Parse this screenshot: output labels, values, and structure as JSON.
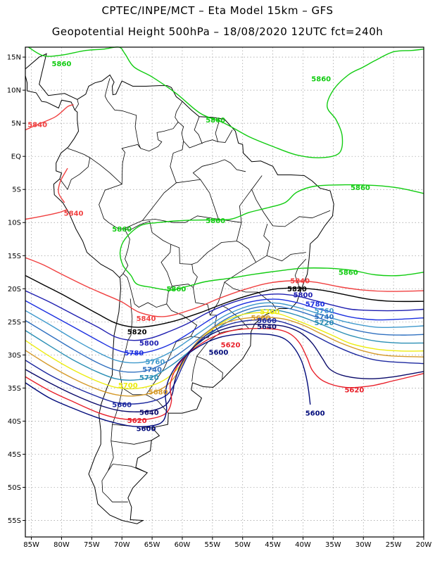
{
  "header": {
    "line1": "CPTEC/INPE/MCT –  Eta Model 15km – GFS",
    "line2": "Geopotential Height 500hPa – 18/08/2020 12UTC fct=240h"
  },
  "axes": {
    "lat_labels": [
      "15N",
      "10N",
      "5N",
      "EQ",
      "5S",
      "10S",
      "15S",
      "20S",
      "25S",
      "30S",
      "35S",
      "40S",
      "45S",
      "50S",
      "55S"
    ],
    "lon_labels": [
      "85W",
      "80W",
      "75W",
      "70W",
      "65W",
      "60W",
      "55W",
      "50W",
      "45W",
      "40W",
      "35W",
      "30W",
      "25W",
      "20W"
    ],
    "lat_range": [
      16.5,
      -57.5
    ],
    "lon_range": [
      -86,
      -20
    ],
    "grid": true
  },
  "contours": {
    "colors": {
      "5600": "#000a7a",
      "5620": "#e8202a",
      "5640": "#0a0a6a",
      "5660": "#1e2aa0",
      "5680": "#d59a2a",
      "5700": "#ecec10",
      "5720": "#2b8fb5",
      "5740": "#2f70c0",
      "5760": "#3f99cc",
      "5780": "#1b2fe0",
      "5800": "#1f1fb0",
      "5820": "#000000",
      "5840": "#f04040",
      "5860": "#11cc11"
    },
    "labels": [
      {
        "text": "5860",
        "color": "5860",
        "lat": 14,
        "lon": -80
      },
      {
        "text": "5860",
        "color": "5860",
        "lat": 11.7,
        "lon": -37
      },
      {
        "text": "5860",
        "color": "5860",
        "lat": 5.5,
        "lon": -54.5
      },
      {
        "text": "5860",
        "color": "5860",
        "lat": -4.7,
        "lon": -30.5
      },
      {
        "text": "5860",
        "color": "5860",
        "lat": -9.7,
        "lon": -54.5
      },
      {
        "text": "5860",
        "color": "5860",
        "lat": -11,
        "lon": -70
      },
      {
        "text": "5860",
        "color": "5860",
        "lat": -17.5,
        "lon": -32.5
      },
      {
        "text": "5860",
        "color": "5860",
        "lat": -20,
        "lon": -61
      },
      {
        "text": "5840",
        "color": "5840",
        "lat": 4.8,
        "lon": -84
      },
      {
        "text": "5840",
        "color": "5840",
        "lat": -8.6,
        "lon": -78
      },
      {
        "text": "5840",
        "color": "5840",
        "lat": -18.8,
        "lon": -40.5
      },
      {
        "text": "5840",
        "color": "5840",
        "lat": -24.5,
        "lon": -66
      },
      {
        "text": "5820",
        "color": "5820",
        "lat": -20,
        "lon": -41
      },
      {
        "text": "5820",
        "color": "5820",
        "lat": -26.5,
        "lon": -67.5
      },
      {
        "text": "5800",
        "color": "5800",
        "lat": -20.9,
        "lon": -40
      },
      {
        "text": "5800",
        "color": "5800",
        "lat": -28.2,
        "lon": -65.5
      },
      {
        "text": "5780",
        "color": "5780",
        "lat": -22.3,
        "lon": -38
      },
      {
        "text": "5780",
        "color": "5780",
        "lat": -29.7,
        "lon": -68
      },
      {
        "text": "5760",
        "color": "5760",
        "lat": -23.3,
        "lon": -36.5
      },
      {
        "text": "5760",
        "color": "5760",
        "lat": -31,
        "lon": -64.5
      },
      {
        "text": "5740",
        "color": "5740",
        "lat": -24.2,
        "lon": -36.5
      },
      {
        "text": "5740",
        "color": "5740",
        "lat": -32.2,
        "lon": -65
      },
      {
        "text": "5720",
        "color": "5720",
        "lat": -25.1,
        "lon": -36.5
      },
      {
        "text": "5720",
        "color": "5720",
        "lat": -33.4,
        "lon": -65.5
      },
      {
        "text": "5700",
        "color": "5700",
        "lat": -23.5,
        "lon": -45.5
      },
      {
        "text": "5700",
        "color": "5700",
        "lat": -34.6,
        "lon": -69
      },
      {
        "text": "5680",
        "color": "5680",
        "lat": -24.4,
        "lon": -47
      },
      {
        "text": "5680",
        "color": "5680",
        "lat": -35.6,
        "lon": -64
      },
      {
        "text": "5660",
        "color": "5660",
        "lat": -24.8,
        "lon": -46
      },
      {
        "text": "5660",
        "color": "5660",
        "lat": -37.5,
        "lon": -70
      },
      {
        "text": "5640",
        "color": "5640",
        "lat": -25.7,
        "lon": -46
      },
      {
        "text": "5640",
        "color": "5640",
        "lat": -38.7,
        "lon": -65.5
      },
      {
        "text": "5620",
        "color": "5620",
        "lat": -28.5,
        "lon": -52
      },
      {
        "text": "5620",
        "color": "5620",
        "lat": -35.3,
        "lon": -31.5
      },
      {
        "text": "5620",
        "color": "5620",
        "lat": -39.9,
        "lon": -67.5
      },
      {
        "text": "5600",
        "color": "5600",
        "lat": -29.6,
        "lon": -54
      },
      {
        "text": "5600",
        "color": "5600",
        "lat": -38.8,
        "lon": -38
      },
      {
        "text": "5600",
        "color": "5600",
        "lat": -41.1,
        "lon": -66
      }
    ]
  }
}
